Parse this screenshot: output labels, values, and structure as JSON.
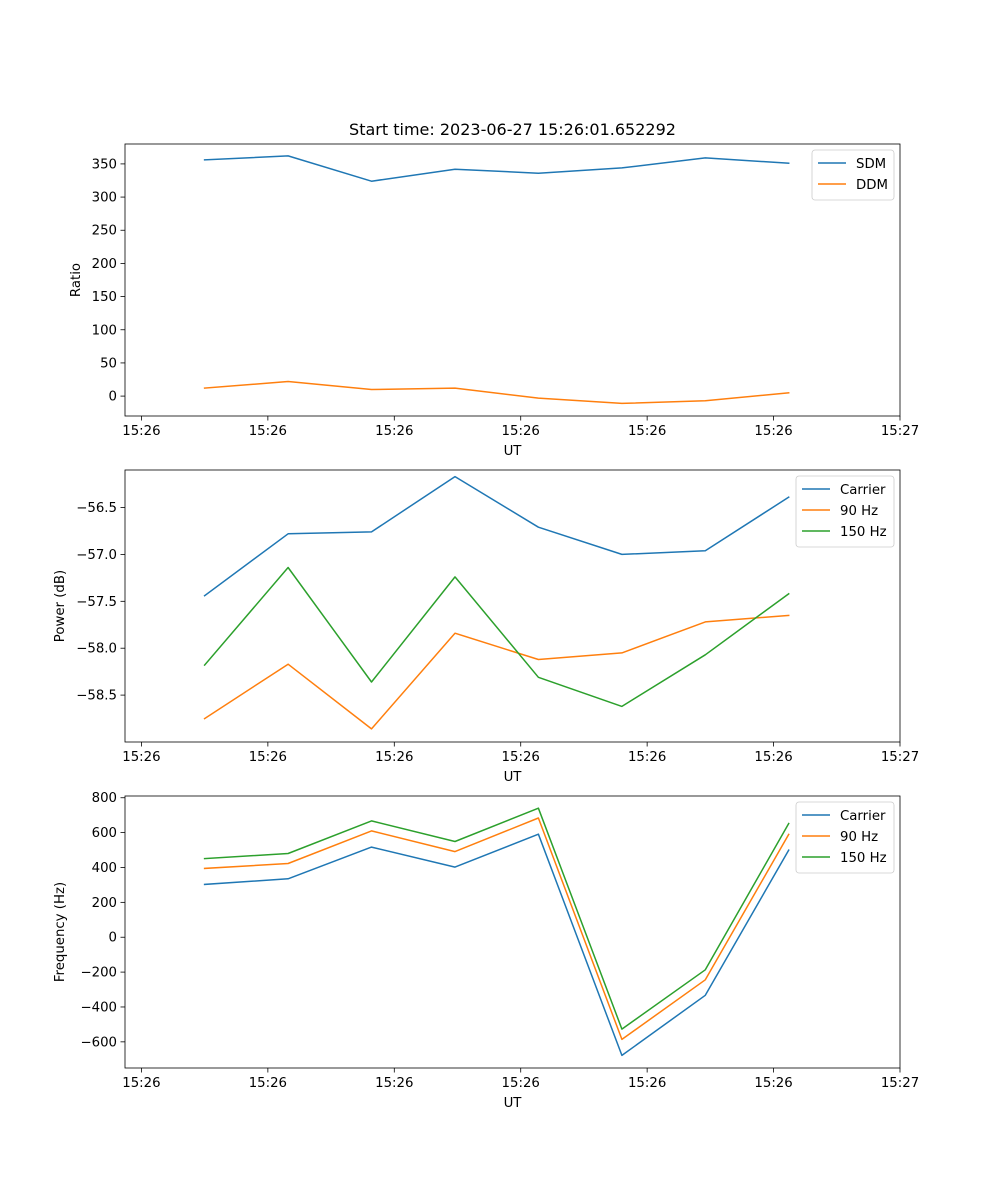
{
  "figure": {
    "title": "Start time: 2023-06-27 15:26:01.652292"
  },
  "colors": {
    "blue": "#1f77b4",
    "orange": "#ff7f0e",
    "green": "#2ca02c"
  },
  "chart_data": [
    {
      "type": "line",
      "title": "Start time: 2023-06-27 15:26:01.652292",
      "xlabel": "UT",
      "ylabel": "Ratio",
      "x_ticks": [
        "15:26",
        "15:26",
        "15:26",
        "15:26",
        "15:26",
        "15:26",
        "15:27"
      ],
      "y_ticks": [
        "0",
        "50",
        "100",
        "150",
        "200",
        "250",
        "300",
        "350"
      ],
      "y_tick_values": [
        0,
        50,
        100,
        150,
        200,
        250,
        300,
        350
      ],
      "ylim": [
        -30,
        380
      ],
      "legend_position": "upper right",
      "x": [
        0.5,
        1.16,
        1.82,
        2.48,
        3.14,
        3.8,
        4.46,
        5.12
      ],
      "xlim": [
        -0.13,
        6.0
      ],
      "series": [
        {
          "name": "SDM",
          "color": "#1f77b4",
          "values": [
            356,
            362,
            324,
            342,
            336,
            344,
            359,
            351
          ]
        },
        {
          "name": "DDM",
          "color": "#ff7f0e",
          "values": [
            12,
            22,
            10,
            12,
            -3,
            -11,
            -7,
            5
          ]
        }
      ]
    },
    {
      "type": "line",
      "title": "",
      "xlabel": "UT",
      "ylabel": "Power (dB)",
      "x_ticks": [
        "15:26",
        "15:26",
        "15:26",
        "15:26",
        "15:26",
        "15:26",
        "15:27"
      ],
      "y_ticks": [
        "−58.5",
        "−58.0",
        "−57.5",
        "−57.0",
        "−56.5"
      ],
      "y_tick_values": [
        -58.5,
        -58.0,
        -57.5,
        -57.0,
        -56.5
      ],
      "ylim": [
        -59.0,
        -56.1
      ],
      "legend_position": "upper right",
      "x": [
        0.5,
        1.16,
        1.82,
        2.48,
        3.14,
        3.8,
        4.46,
        5.12
      ],
      "xlim": [
        -0.13,
        6.0
      ],
      "series": [
        {
          "name": "Carrier",
          "color": "#1f77b4",
          "values": [
            -57.44,
            -56.78,
            -56.76,
            -56.17,
            -56.71,
            -57.0,
            -56.96,
            -56.39
          ]
        },
        {
          "name": "90 Hz",
          "color": "#ff7f0e",
          "values": [
            -58.75,
            -58.17,
            -58.86,
            -57.84,
            -58.12,
            -58.05,
            -57.72,
            -57.65
          ]
        },
        {
          "name": "150 Hz",
          "color": "#2ca02c",
          "values": [
            -58.18,
            -57.14,
            -58.36,
            -57.24,
            -58.31,
            -58.62,
            -58.07,
            -57.42
          ]
        }
      ]
    },
    {
      "type": "line",
      "title": "",
      "xlabel": "UT",
      "ylabel": "Frequency (Hz)",
      "x_ticks": [
        "15:26",
        "15:26",
        "15:26",
        "15:26",
        "15:26",
        "15:26",
        "15:27"
      ],
      "y_ticks": [
        "−600",
        "−400",
        "−200",
        "0",
        "200",
        "400",
        "600",
        "800"
      ],
      "y_tick_values": [
        -600,
        -400,
        -200,
        0,
        200,
        400,
        600,
        800
      ],
      "ylim": [
        -750,
        810
      ],
      "legend_position": "upper right",
      "x": [
        0.5,
        1.16,
        1.82,
        2.48,
        3.14,
        3.8,
        4.46,
        5.12
      ],
      "xlim": [
        -0.13,
        6.0
      ],
      "series": [
        {
          "name": "Carrier",
          "color": "#1f77b4",
          "values": [
            303,
            335,
            517,
            402,
            591,
            -678,
            -333,
            500
          ]
        },
        {
          "name": "90 Hz",
          "color": "#ff7f0e",
          "values": [
            395,
            423,
            610,
            491,
            684,
            -586,
            -244,
            590
          ]
        },
        {
          "name": "150 Hz",
          "color": "#2ca02c",
          "values": [
            451,
            480,
            667,
            549,
            740,
            -527,
            -187,
            652
          ]
        }
      ]
    }
  ]
}
